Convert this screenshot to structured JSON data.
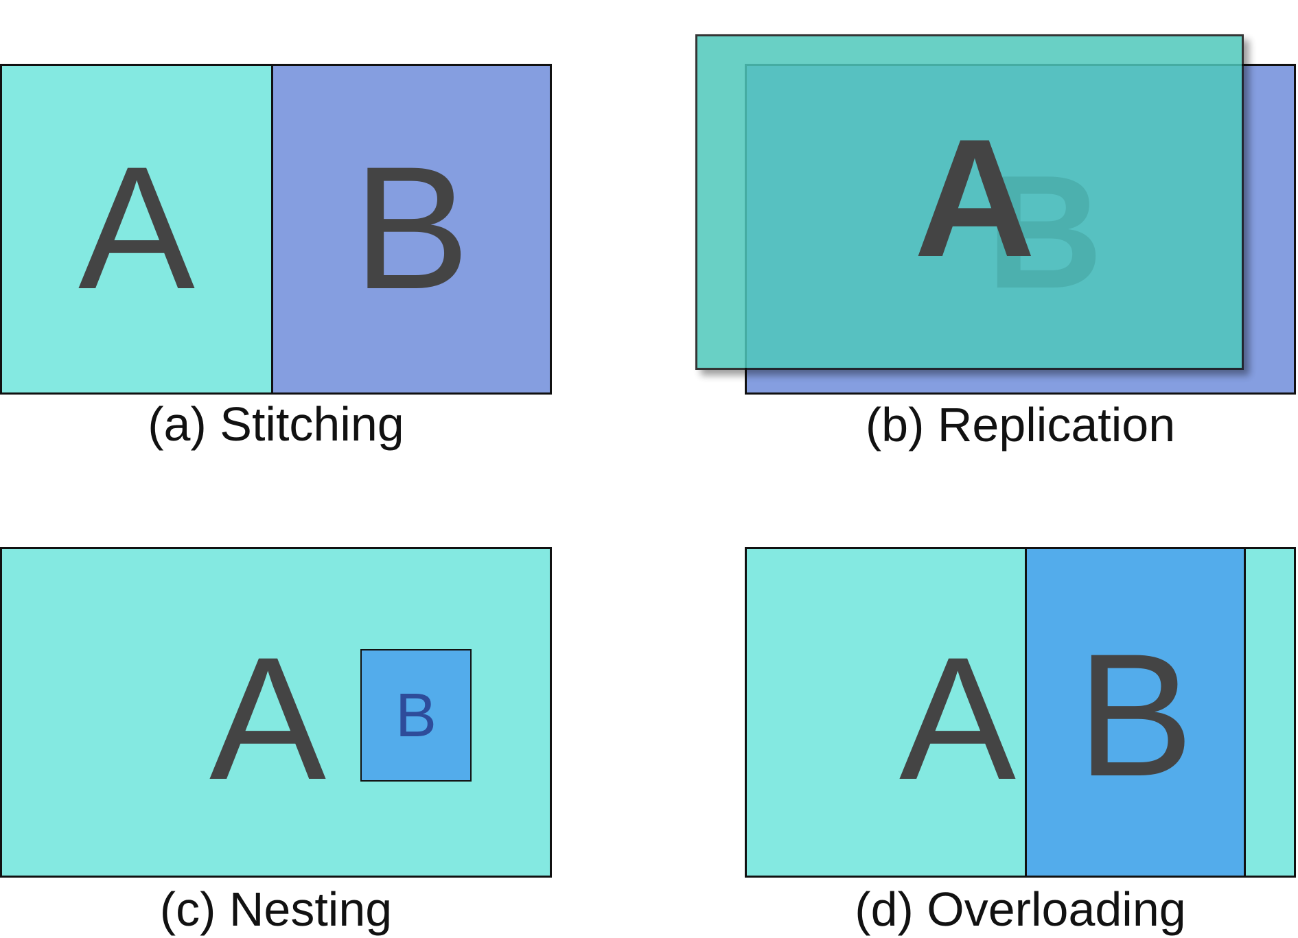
{
  "colors": {
    "box_a": "#84e9e1",
    "box_b_purple": "#859ee0",
    "box_b_blue": "#53aceb",
    "replication_front": "#4fc8bc",
    "border": "#111111",
    "letter": "#444444",
    "nested_letter": "#2e4c9a"
  },
  "panels": {
    "a": {
      "letter_a": "A",
      "letter_b": "B",
      "caption": "(a) Stitching"
    },
    "b": {
      "letter_a": "A",
      "letter_b": "B",
      "caption": "(b) Replication"
    },
    "c": {
      "letter_a": "A",
      "letter_b": "B",
      "caption": "(c) Nesting"
    },
    "d": {
      "letter_a": "A",
      "letter_b": "B",
      "caption": "(d) Overloading"
    }
  }
}
